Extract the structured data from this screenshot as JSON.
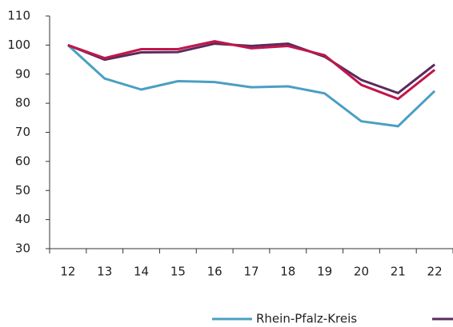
{
  "chart_data": {
    "type": "line",
    "categories": [
      "12",
      "13",
      "14",
      "15",
      "16",
      "17",
      "18",
      "19",
      "20",
      "21",
      "22"
    ],
    "series": [
      {
        "name": "Rhein-Pfalz-Kreis",
        "color": "#4a9fc3",
        "values": [
          100,
          88.5,
          84.7,
          87.6,
          87.3,
          85.5,
          85.8,
          83.4,
          73.8,
          72.1,
          84.2
        ]
      },
      {
        "color": "#5b2a5e",
        "values": [
          100,
          95,
          97.5,
          97.6,
          100.5,
          99.7,
          100.5,
          96,
          88,
          83.5,
          93.3
        ]
      },
      {
        "color": "#c0174a",
        "values": [
          100,
          95.5,
          98.6,
          98.6,
          101.3,
          98.9,
          99.7,
          96.5,
          86.3,
          81.5,
          91.5
        ]
      }
    ],
    "ylim": [
      30,
      110
    ],
    "yticks": [
      30,
      40,
      50,
      60,
      70,
      80,
      90,
      100,
      110
    ],
    "legend": "bottom"
  }
}
